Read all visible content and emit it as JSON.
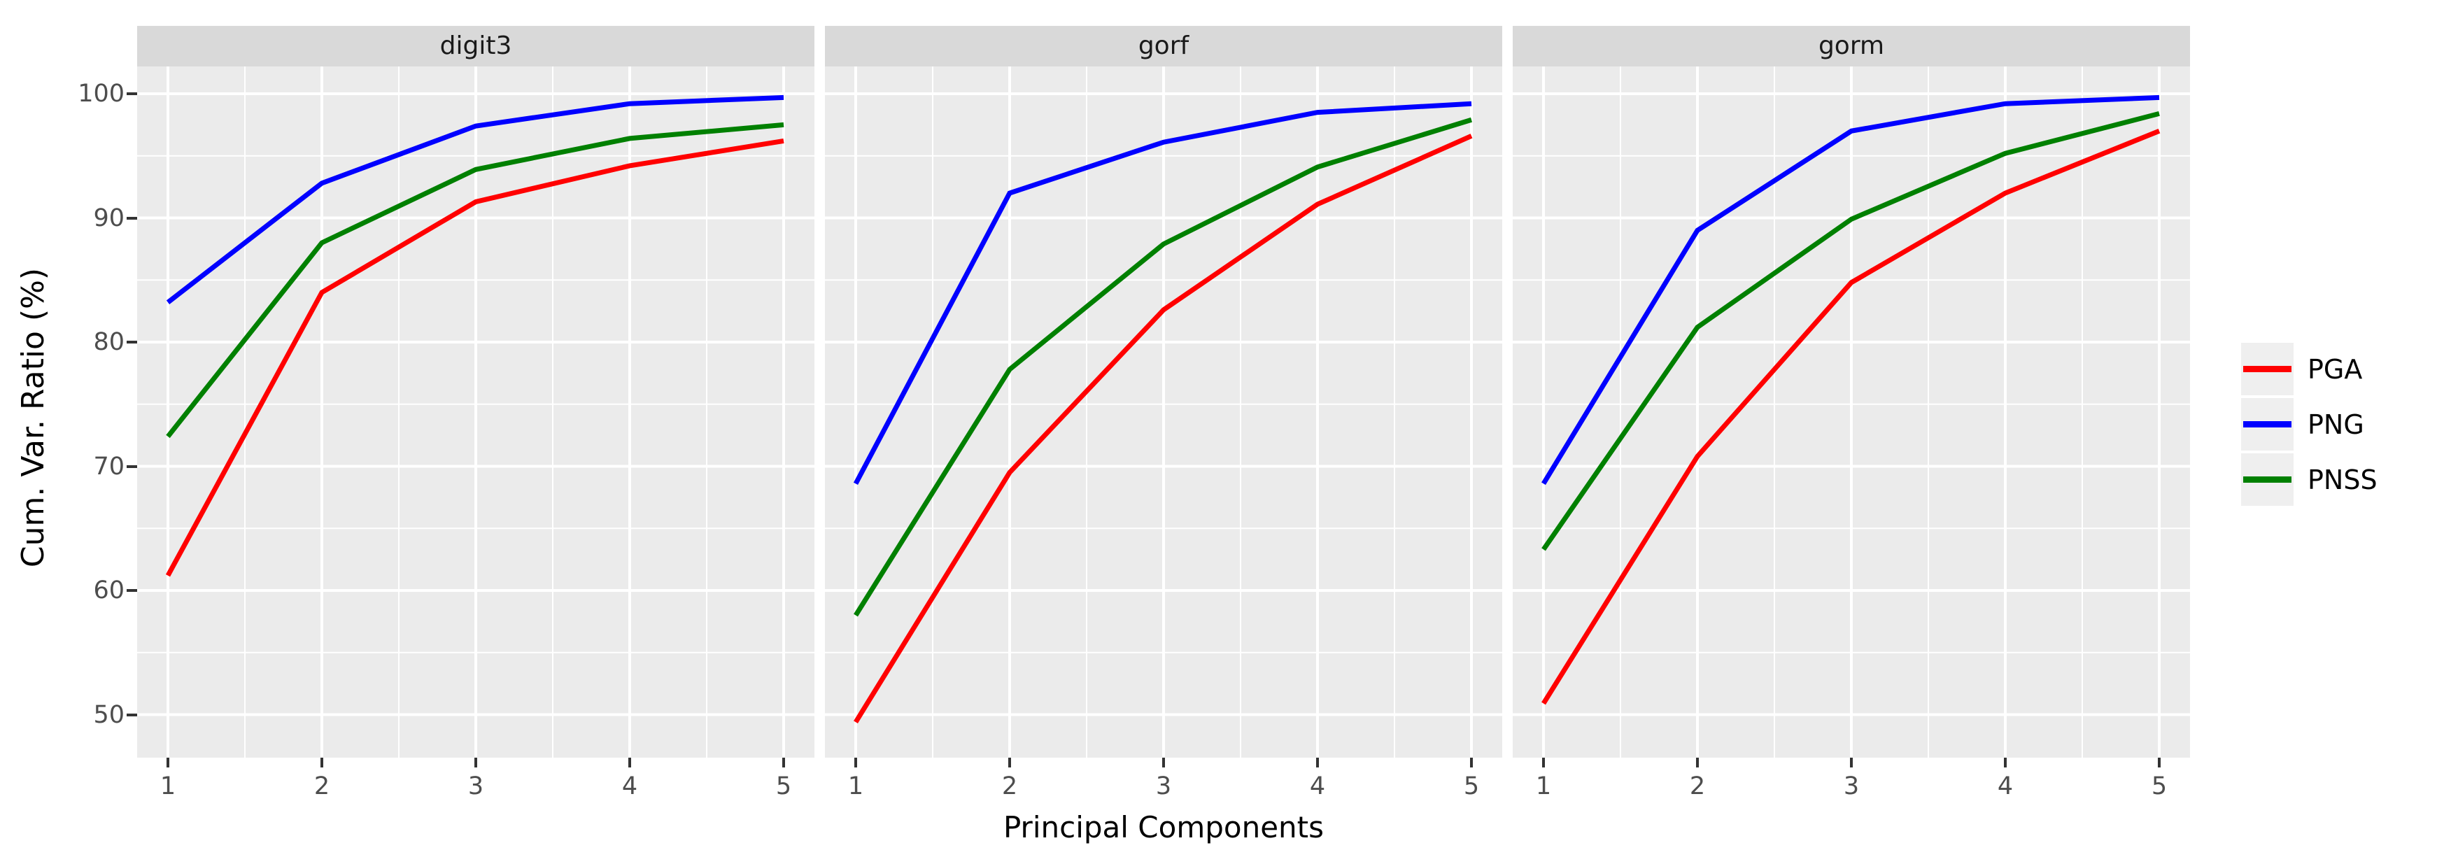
{
  "figure_title": "",
  "axes": {
    "ylabel": "Cum. Var. Ratio (%)",
    "xlabel": "Principal Components"
  },
  "colors": {
    "panel_background": "#ebebeb",
    "strip_background": "#d9d9d9",
    "gridline": "#ffffff",
    "tick_text": "#4d4d4d",
    "tick_mark": "#333333",
    "pga": "#ff0000",
    "png": "#0000ff",
    "pnss": "#008000"
  },
  "legend": {
    "position": "right",
    "items": [
      {
        "label": "PGA",
        "color": "#ff0000"
      },
      {
        "label": "PNG",
        "color": "#0000ff"
      },
      {
        "label": "PNSS",
        "color": "#008000"
      }
    ]
  },
  "chart_data": {
    "type": "line",
    "xlabel": "Principal Components",
    "ylabel": "Cum. Var. Ratio (%)",
    "x": [
      1,
      2,
      3,
      4,
      5
    ],
    "xtick_labels": [
      "1",
      "2",
      "3",
      "4",
      "5"
    ],
    "yticks": [
      100,
      90,
      80,
      70,
      60,
      50
    ],
    "ytick_labels": [
      "100",
      "90",
      "80",
      "70",
      "60",
      "50"
    ],
    "yticks_minor": [
      95,
      85,
      75,
      65,
      55
    ],
    "ylim": [
      46.5,
      102.2
    ],
    "grid": true,
    "legend_position": "right",
    "facets": [
      {
        "title": "digit3",
        "series": [
          {
            "name": "PGA",
            "color": "#ff0000",
            "values": [
              61.2,
              84.0,
              91.3,
              94.2,
              96.2
            ]
          },
          {
            "name": "PNG",
            "color": "#0000ff",
            "values": [
              83.2,
              92.8,
              97.4,
              99.2,
              99.7
            ]
          },
          {
            "name": "PNSS",
            "color": "#008000",
            "values": [
              72.4,
              88.0,
              93.9,
              96.4,
              97.5
            ]
          }
        ]
      },
      {
        "title": "gorf",
        "series": [
          {
            "name": "PGA",
            "color": "#ff0000",
            "values": [
              49.4,
              69.5,
              82.6,
              91.1,
              96.6
            ]
          },
          {
            "name": "PNG",
            "color": "#0000ff",
            "values": [
              68.6,
              92.0,
              96.1,
              98.5,
              99.2
            ]
          },
          {
            "name": "PNSS",
            "color": "#008000",
            "values": [
              58.0,
              77.8,
              87.9,
              94.1,
              97.9
            ]
          }
        ]
      },
      {
        "title": "gorm",
        "series": [
          {
            "name": "PGA",
            "color": "#ff0000",
            "values": [
              50.9,
              70.8,
              84.8,
              92.0,
              97.0
            ]
          },
          {
            "name": "PNG",
            "color": "#0000ff",
            "values": [
              68.6,
              89.0,
              97.0,
              99.2,
              99.7
            ]
          },
          {
            "name": "PNSS",
            "color": "#008000",
            "values": [
              63.3,
              81.2,
              89.9,
              95.2,
              98.4
            ]
          }
        ]
      }
    ]
  }
}
